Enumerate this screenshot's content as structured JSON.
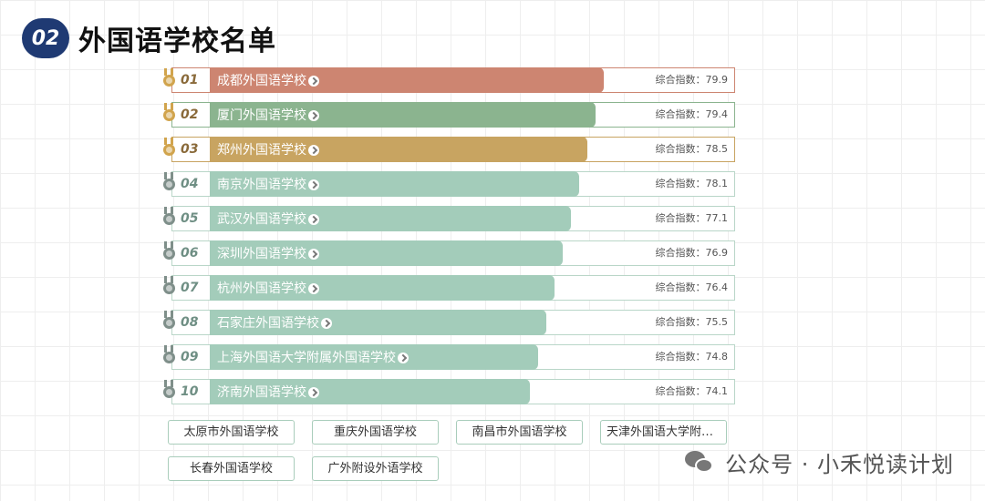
{
  "header": {
    "badge": "02",
    "title": "外国语学校名单"
  },
  "score_prefix": "综合指数：",
  "colors": {
    "gold": "#d1a44d",
    "silver": "#7f8f8a",
    "bar_first": "#cd8571",
    "bar_second": "#8bb48f",
    "bar_third": "#c8a461",
    "bar_rest": "#a3ccba"
  },
  "ranking": [
    {
      "rank": "01",
      "name": "成都外国语学校",
      "score": "79.9",
      "medal": "gold"
    },
    {
      "rank": "02",
      "name": "厦门外国语学校",
      "score": "79.4",
      "medal": "gold"
    },
    {
      "rank": "03",
      "name": "郑州外国语学校",
      "score": "78.5",
      "medal": "gold"
    },
    {
      "rank": "04",
      "name": "南京外国语学校",
      "score": "78.1",
      "medal": "silver"
    },
    {
      "rank": "05",
      "name": "武汉外国语学校",
      "score": "77.1",
      "medal": "silver"
    },
    {
      "rank": "06",
      "name": "深圳外国语学校",
      "score": "76.9",
      "medal": "silver"
    },
    {
      "rank": "07",
      "name": "杭州外国语学校",
      "score": "76.4",
      "medal": "silver"
    },
    {
      "rank": "08",
      "name": "石家庄外国语学校",
      "score": "75.5",
      "medal": "silver"
    },
    {
      "rank": "09",
      "name": "上海外国语大学附属外国语学校",
      "score": "74.8",
      "medal": "silver"
    },
    {
      "rank": "10",
      "name": "济南外国语学校",
      "score": "74.1",
      "medal": "silver"
    }
  ],
  "other_schools": [
    "太原市外国语学校",
    "重庆外国语学校",
    "南昌市外国语学校",
    "天津外国语大学附属...",
    "长春外国语学校",
    "广外附设外语学校"
  ],
  "footer": {
    "text": "公众号 · 小禾悦读计划",
    "icon": "wechat-icon"
  }
}
